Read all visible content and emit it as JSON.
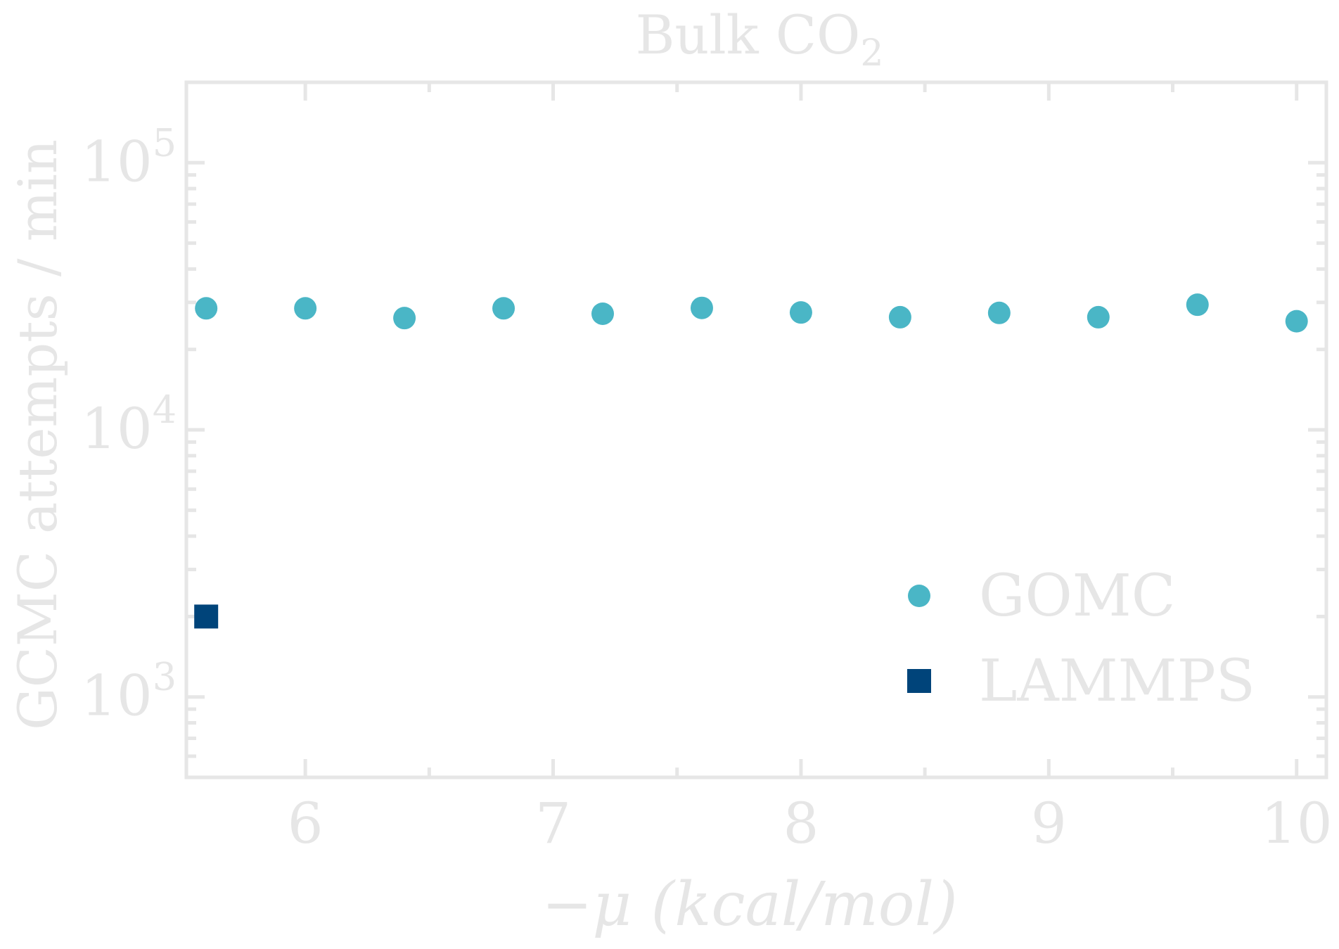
{
  "chart_data": {
    "type": "scatter",
    "title": "Bulk CO",
    "title_subscript": "2",
    "xlabel": "−μ (kcal/mol)",
    "ylabel": "GCMC attempts / min",
    "xlim": [
      5.52,
      10.12
    ],
    "ylim": [
      500,
      200000
    ],
    "yscale": "log",
    "x_ticks": [
      6,
      7,
      8,
      9,
      10
    ],
    "x_tick_labels": [
      "6",
      "7",
      "8",
      "9",
      "10"
    ],
    "y_ticks": [
      1000,
      10000,
      100000
    ],
    "y_tick_labels": [
      {
        "base": "10",
        "exp": "3"
      },
      {
        "base": "10",
        "exp": "4"
      },
      {
        "base": "10",
        "exp": "5"
      }
    ],
    "grid": false,
    "legend_position": "lower-right",
    "series": [
      {
        "name": "GOMC",
        "marker": "circle",
        "color": "#4ab6c6",
        "x": [
          5.6,
          6.0,
          6.4,
          6.8,
          7.2,
          7.6,
          8.0,
          8.4,
          8.8,
          9.2,
          9.6,
          10.0
        ],
        "y": [
          28500,
          28500,
          26200,
          28500,
          27200,
          28600,
          27500,
          26400,
          27400,
          26400,
          29400,
          25500
        ]
      },
      {
        "name": "LAMMPS",
        "marker": "square",
        "color": "#00447a",
        "x": [
          5.6
        ],
        "y": [
          2000
        ]
      }
    ]
  },
  "colors": {
    "axis": "#e6e6e6",
    "text": "#e6e6e6",
    "background": "#ffffff"
  }
}
